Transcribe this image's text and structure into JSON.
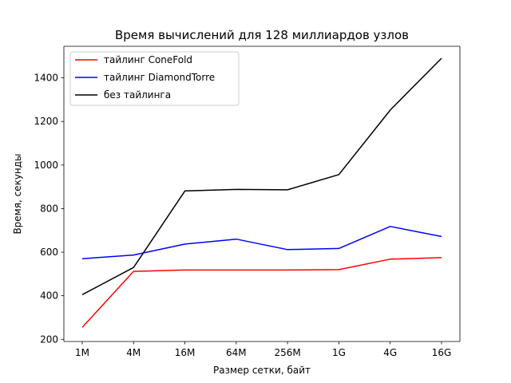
{
  "chart_data": {
    "type": "line",
    "title": "Время вычислений для 128 миллиардов узлов",
    "xlabel": "Размер сетки, байт",
    "ylabel": "Время, секунды",
    "categories": [
      "1M",
      "4M",
      "16M",
      "64M",
      "256M",
      "1G",
      "4G",
      "16G"
    ],
    "ylim": [
      190,
      1545
    ],
    "yticks": [
      200,
      400,
      600,
      800,
      1000,
      1200,
      1400
    ],
    "grid": false,
    "legend_position": "top-left",
    "series": [
      {
        "name": "тайлинг ConeFold",
        "color": "#ff0000",
        "values": [
          255,
          512,
          518,
          518,
          518,
          520,
          568,
          575
        ]
      },
      {
        "name": "тайлинг DiamondTorre",
        "color": "#0000ff",
        "values": [
          570,
          587,
          637,
          660,
          612,
          617,
          718,
          672
        ]
      },
      {
        "name": "без тайлинга",
        "color": "#000000",
        "values": [
          405,
          530,
          881,
          888,
          886,
          956,
          1252,
          1490
        ]
      }
    ]
  }
}
